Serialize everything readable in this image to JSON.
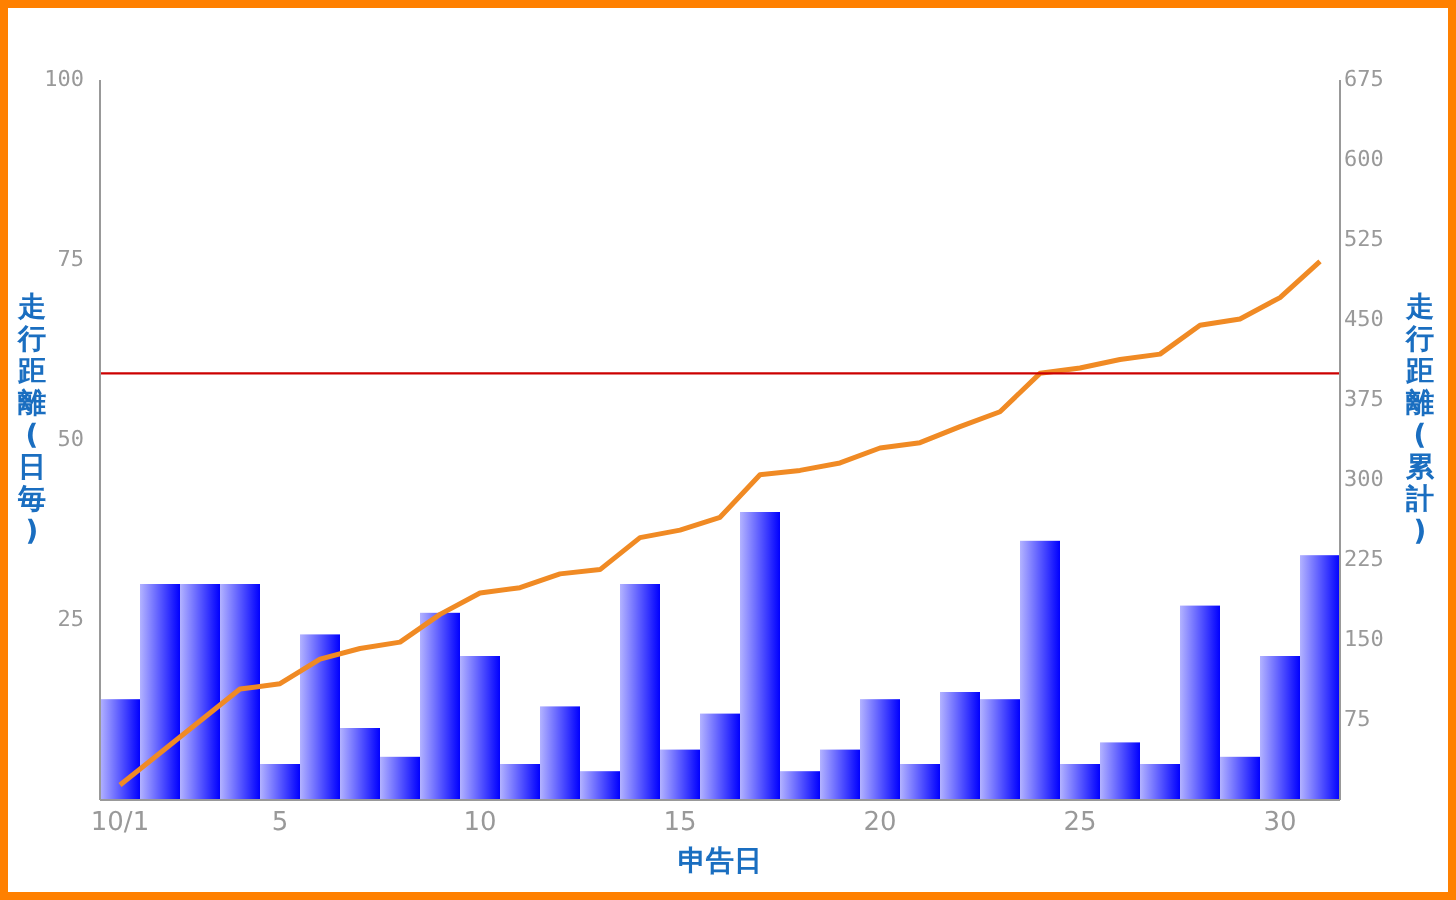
{
  "chart_data": {
    "type": "bar",
    "categories": [
      "10/1",
      null,
      null,
      null,
      "5",
      null,
      null,
      null,
      null,
      "10",
      null,
      null,
      null,
      null,
      "15",
      null,
      null,
      null,
      null,
      "20",
      null,
      null,
      null,
      null,
      "25",
      null,
      null,
      null,
      null,
      "30",
      null
    ],
    "series": [
      {
        "color": "#0000ff",
        "values": [
          14,
          30,
          30,
          30,
          5,
          23,
          10,
          6,
          26,
          20,
          5,
          13,
          4,
          30,
          7,
          12,
          40,
          4,
          7,
          14,
          5,
          15,
          14,
          36,
          5,
          8,
          5,
          27,
          6,
          20,
          34
        ]
      },
      {
        "type": "line",
        "axis": "y2",
        "color": "#f08a24",
        "values": [
          14,
          44,
          74,
          104,
          109,
          132,
          142,
          148,
          174,
          194,
          199,
          212,
          216,
          246,
          253,
          265,
          305,
          309,
          316,
          330,
          335,
          350,
          364,
          400,
          405,
          413,
          418,
          445,
          451,
          471,
          505
        ]
      }
    ],
    "xlabel": "申告日",
    "ylabel": "走行距離(日毎)",
    "y2label": "走行距離(累計)",
    "ylim": [
      0,
      100
    ],
    "yticks": [
      25,
      50,
      75,
      100
    ],
    "y2lim": [
      0,
      675
    ],
    "y2ticks": [
      75,
      150,
      225,
      300,
      375,
      450,
      525,
      600,
      675
    ],
    "ref_lines": [
      {
        "axis": "y2",
        "value": 400,
        "color": "#cc0000"
      }
    ],
    "grid": false,
    "marker": "none",
    "line_style": "solid"
  }
}
